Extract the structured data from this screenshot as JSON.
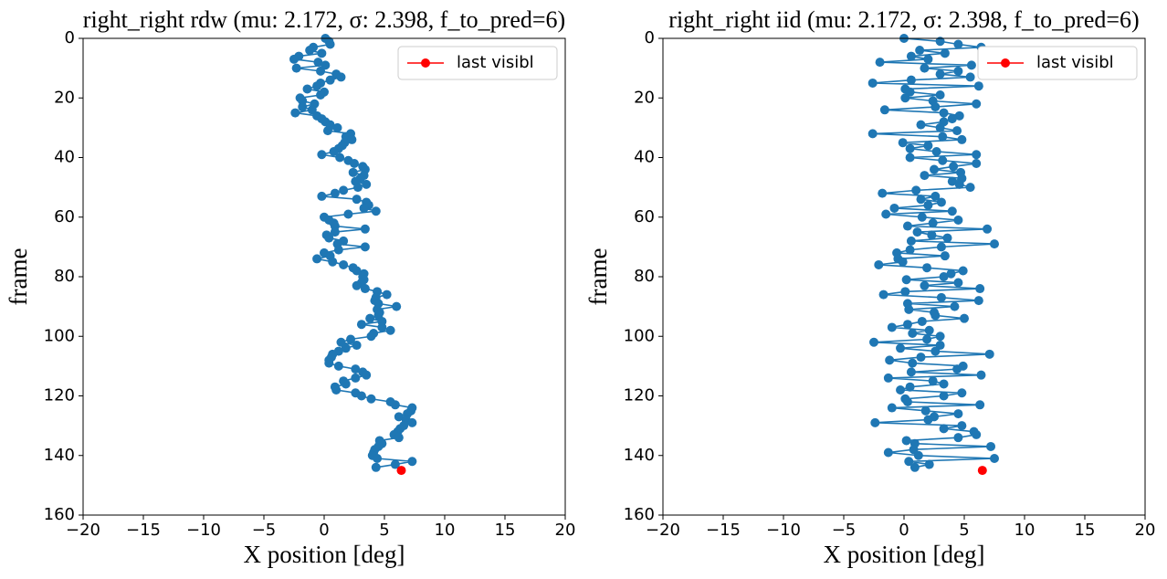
{
  "chart_data": [
    {
      "type": "line",
      "title": "right_right rdw (mu: 2.172, σ: 2.398, f_to_pred=6)",
      "x_label": "X position [deg]",
      "y_label": "frame",
      "xlim": [
        -20,
        20
      ],
      "ylim": [
        160,
        0
      ],
      "xticks": [
        {
          "value": -20,
          "label": "−20"
        },
        {
          "value": -15,
          "label": "−15"
        },
        {
          "value": -10,
          "label": "−10"
        },
        {
          "value": -5,
          "label": "−5"
        },
        0,
        5,
        10,
        15,
        20
      ],
      "yticks": [
        0,
        20,
        40,
        60,
        80,
        100,
        120,
        140,
        160
      ],
      "legend": "upper right",
      "series": [
        {
          "color": "#1f77b4",
          "marker": true,
          "line": true,
          "x": [
            0.1,
            0.4,
            0.5,
            -0.9,
            -1.2,
            -0.2,
            -2.1,
            -2.5,
            -0.5,
            0.1,
            -2.3,
            -0.3,
            1.0,
            1.4,
            0.5,
            -0.3,
            -0.6,
            -1.4,
            0.0,
            -0.3,
            -2.0,
            -1.8,
            -0.8,
            -1.8,
            -1.0,
            -2.4,
            -0.6,
            -0.2,
            0.1,
            0.5,
            1.1,
            0.3,
            2.2,
            1.8,
            2.3,
            1.7,
            1.5,
            1.2,
            0.8,
            -0.2,
            1.3,
            2.0,
            2.5,
            3.2,
            3.4,
            2.4,
            3.3,
            3.0,
            2.6,
            3.5,
            2.8,
            1.6,
            0.9,
            -0.2,
            2.7,
            3.5,
            3.7,
            3.3,
            4.3,
            2.0,
            0.0,
            0.4,
            0.8,
            0.9,
            3.4,
            0.9,
            0.2,
            0.4,
            1.6,
            1.1,
            3.4,
            1.2,
            0.0,
            0.5,
            -0.6,
            0.7,
            1.6,
            2.4,
            2.7,
            3.3,
            3.2,
            3.3,
            3.1,
            2.7,
            3.4,
            4.4,
            5.2,
            4.3,
            4.2,
            4.5,
            6.0,
            4.4,
            4.6,
            4.5,
            3.8,
            4.8,
            3.1,
            4.8,
            5.5,
            4.1,
            3.9,
            2.2,
            1.4,
            2.7,
            1.8,
            1.2,
            0.7,
            0.6,
            0.4,
            0.4,
            1.2,
            2.6,
            3.2,
            3.5,
            2.6,
            1.6,
            1.8,
            0.9,
            1.0,
            2.6,
            3.1,
            3.9,
            5.5,
            5.9,
            7.3,
            7.2,
            6.9,
            6.2,
            6.8,
            7.3,
            6.6,
            6.3,
            6.1,
            5.8,
            6.2,
            4.6,
            4.8,
            4.5,
            4.2,
            4.1,
            4.0,
            4.4,
            7.3,
            5.9,
            4.3
          ],
          "y": [
            0,
            1,
            2,
            3,
            4,
            5,
            6,
            7,
            8,
            9,
            10,
            11,
            12,
            13,
            14,
            15,
            16,
            17,
            18,
            19,
            20,
            21,
            22,
            23,
            24,
            25,
            26,
            27,
            28,
            29,
            30,
            31,
            32,
            33,
            34,
            35,
            36,
            37,
            38,
            39,
            40,
            41,
            42,
            43,
            44,
            45,
            46,
            47,
            48,
            49,
            50,
            51,
            52,
            53,
            54,
            55,
            56,
            57,
            58,
            59,
            60,
            61,
            62,
            63,
            64,
            65,
            66,
            67,
            68,
            69,
            70,
            71,
            72,
            73,
            74,
            75,
            76,
            77,
            78,
            79,
            80,
            81,
            82,
            83,
            84,
            85,
            86,
            87,
            88,
            89,
            90,
            91,
            92,
            93,
            94,
            95,
            96,
            97,
            98,
            99,
            100,
            101,
            102,
            103,
            104,
            105,
            106,
            107,
            108,
            109,
            110,
            111,
            112,
            113,
            114,
            115,
            116,
            117,
            118,
            119,
            120,
            121,
            122,
            123,
            124,
            125,
            126,
            127,
            128,
            129,
            130,
            131,
            132,
            133,
            134,
            135,
            136,
            137,
            138,
            139,
            140,
            141,
            142,
            143,
            144
          ]
        },
        {
          "name": "last visibl",
          "color": "#ff0000",
          "marker": true,
          "line": false,
          "x": [
            6.4
          ],
          "y": [
            145
          ]
        }
      ]
    },
    {
      "type": "line",
      "title": "right_right iid (mu: 2.172, σ: 2.398, f_to_pred=6)",
      "x_label": "X position [deg]",
      "y_label": "frame",
      "xlim": [
        -20,
        20
      ],
      "ylim": [
        160,
        0
      ],
      "xticks": [
        {
          "value": -20,
          "label": "−20"
        },
        {
          "value": -15,
          "label": "−15"
        },
        {
          "value": -10,
          "label": "−10"
        },
        {
          "value": -5,
          "label": "−5"
        },
        0,
        5,
        10,
        15,
        20
      ],
      "yticks": [
        0,
        20,
        40,
        60,
        80,
        100,
        120,
        140,
        160
      ],
      "legend": "upper right",
      "series": [
        {
          "color": "#1f77b4",
          "marker": true,
          "line": true,
          "x": [
            0.0,
            3.0,
            4.5,
            6.4,
            1.3,
            3.4,
            0.6,
            2.0,
            -2.0,
            5.6,
            1.7,
            4.5,
            3.0,
            5.5,
            0.6,
            -2.6,
            6.2,
            0.1,
            0.5,
            3.0,
            0.1,
            2.4,
            6.0,
            2.6,
            -1.6,
            3.3,
            4.6,
            4.0,
            3.3,
            1.4,
            3.0,
            4.4,
            -2.6,
            3.2,
            4.8,
            -0.1,
            2.0,
            0.5,
            2.7,
            6.0,
            0.5,
            3.2,
            6.0,
            4.1,
            2.5,
            4.7,
            1.7,
            4.8,
            4.0,
            4.6,
            5.5,
            1.0,
            -1.8,
            2.6,
            1.4,
            3.1,
            2.0,
            -0.8,
            4.0,
            -1.5,
            1.5,
            4.5,
            2.4,
            0.3,
            6.9,
            1.1,
            2.3,
            3.6,
            0.6,
            7.5,
            3.1,
            0.5,
            -0.6,
            3.4,
            -0.5,
            -0.1,
            -2.1,
            1.9,
            4.9,
            3.9,
            3.3,
            0.2,
            4.5,
            1.7,
            6.3,
            0.1,
            -1.7,
            3.1,
            6.2,
            0.3,
            4.2,
            0.4,
            2.5,
            2.6,
            5.0,
            1.5,
            0.3,
            -1.0,
            2.1,
            0.7,
            3.0,
            1.9,
            -2.5,
            3.0,
            -0.3,
            2.6,
            7.1,
            1.4,
            -1.2,
            0.7,
            4.9,
            4.4,
            0.6,
            6.4,
            -1.3,
            2.4,
            3.3,
            0.5,
            -0.3,
            4.8,
            3.3,
            0.1,
            0.3,
            6.3,
            -1.0,
            1.8,
            4.5,
            2.5,
            2.0,
            -2.4,
            4.8,
            3.3,
            5.8,
            6.0,
            4.5,
            0.2,
            0.9,
            7.2,
            0.8,
            -1.3,
            1.2,
            7.5,
            0.4,
            2.1,
            0.9
          ],
          "y": [
            0,
            1,
            2,
            3,
            4,
            5,
            6,
            7,
            8,
            9,
            10,
            11,
            12,
            13,
            14,
            15,
            16,
            17,
            18,
            19,
            20,
            21,
            22,
            23,
            24,
            25,
            26,
            27,
            28,
            29,
            30,
            31,
            32,
            33,
            34,
            35,
            36,
            37,
            38,
            39,
            40,
            41,
            42,
            43,
            44,
            45,
            46,
            47,
            48,
            49,
            50,
            51,
            52,
            53,
            54,
            55,
            56,
            57,
            58,
            59,
            60,
            61,
            62,
            63,
            64,
            65,
            66,
            67,
            68,
            69,
            70,
            71,
            72,
            73,
            74,
            75,
            76,
            77,
            78,
            79,
            80,
            81,
            82,
            83,
            84,
            85,
            86,
            87,
            88,
            89,
            90,
            91,
            92,
            93,
            94,
            95,
            96,
            97,
            98,
            99,
            100,
            101,
            102,
            103,
            104,
            105,
            106,
            107,
            108,
            109,
            110,
            111,
            112,
            113,
            114,
            115,
            116,
            117,
            118,
            119,
            120,
            121,
            122,
            123,
            124,
            125,
            126,
            127,
            128,
            129,
            130,
            131,
            132,
            133,
            134,
            135,
            136,
            137,
            138,
            139,
            140,
            141,
            142,
            143,
            144
          ]
        },
        {
          "name": "last visibl",
          "color": "#ff0000",
          "marker": true,
          "line": false,
          "x": [
            6.5
          ],
          "y": [
            145
          ]
        }
      ]
    }
  ]
}
